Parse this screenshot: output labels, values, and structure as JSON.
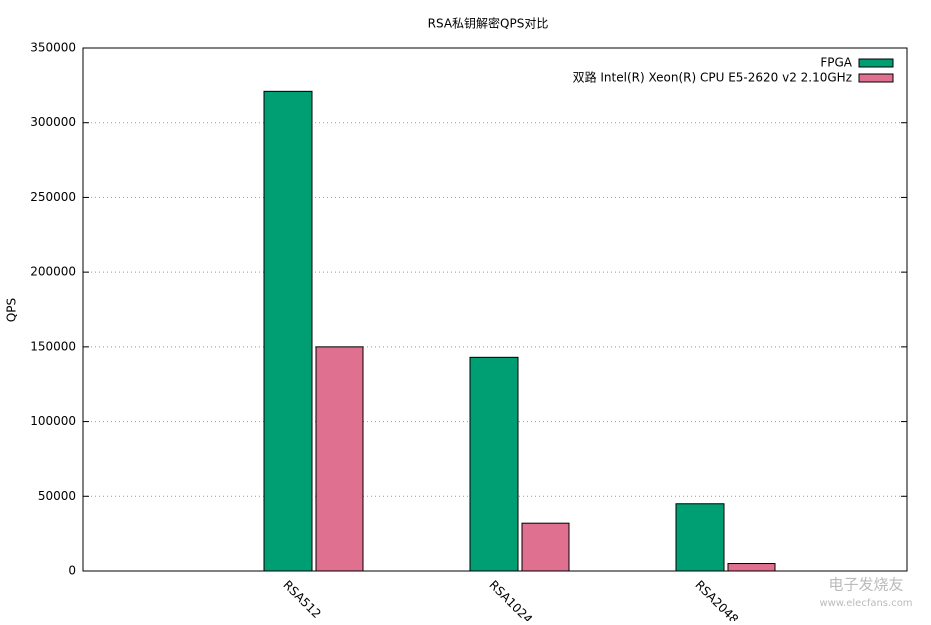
{
  "chart_data": {
    "type": "bar",
    "title": "RSA私钥解密QPS对比",
    "y_label": "QPS",
    "categories": [
      "RSA512",
      "RSA1024",
      "RSA2048"
    ],
    "series": [
      {
        "name": "FPGA",
        "color": "#009e73",
        "values": [
          321000,
          143000,
          45000
        ]
      },
      {
        "name": "双路 Intel(R) Xeon(R) CPU E5-2620 v2 2.10GHz",
        "color": "#e07090",
        "values": [
          150000,
          32000,
          5000
        ]
      }
    ],
    "ylim": [
      0,
      350000
    ],
    "yticks": [
      0,
      50000,
      100000,
      150000,
      200000,
      250000,
      300000,
      350000
    ],
    "grid": true,
    "legend": "top-right",
    "watermark": [
      "电子发烧友",
      "www.elecfans.com"
    ]
  }
}
